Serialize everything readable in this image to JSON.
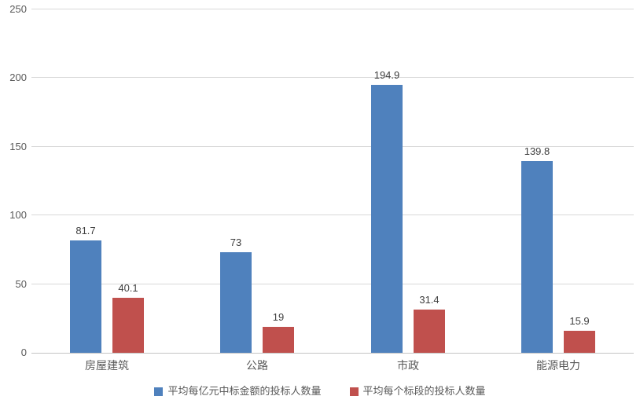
{
  "chart_data": {
    "type": "bar",
    "categories": [
      "房屋建筑",
      "公路",
      "市政",
      "能源电力"
    ],
    "series": [
      {
        "name": "平均每亿元中标金额的投标人数量",
        "color": "#4F81BD",
        "values": [
          81.7,
          73,
          194.9,
          139.8
        ]
      },
      {
        "name": "平均每个标段的投标人数量",
        "color": "#C0504D",
        "values": [
          40.1,
          19,
          31.4,
          15.9
        ]
      }
    ],
    "title": "",
    "xlabel": "",
    "ylabel": "",
    "ylim": [
      0,
      250
    ],
    "yticks": [
      0,
      50,
      100,
      150,
      200,
      250
    ],
    "grid": true,
    "gridline_color": "#D9D9D9",
    "axis_text_color": "#595959",
    "data_label_color": "#3F3F3F",
    "legend_position": "bottom",
    "data_labels_visible": true
  }
}
